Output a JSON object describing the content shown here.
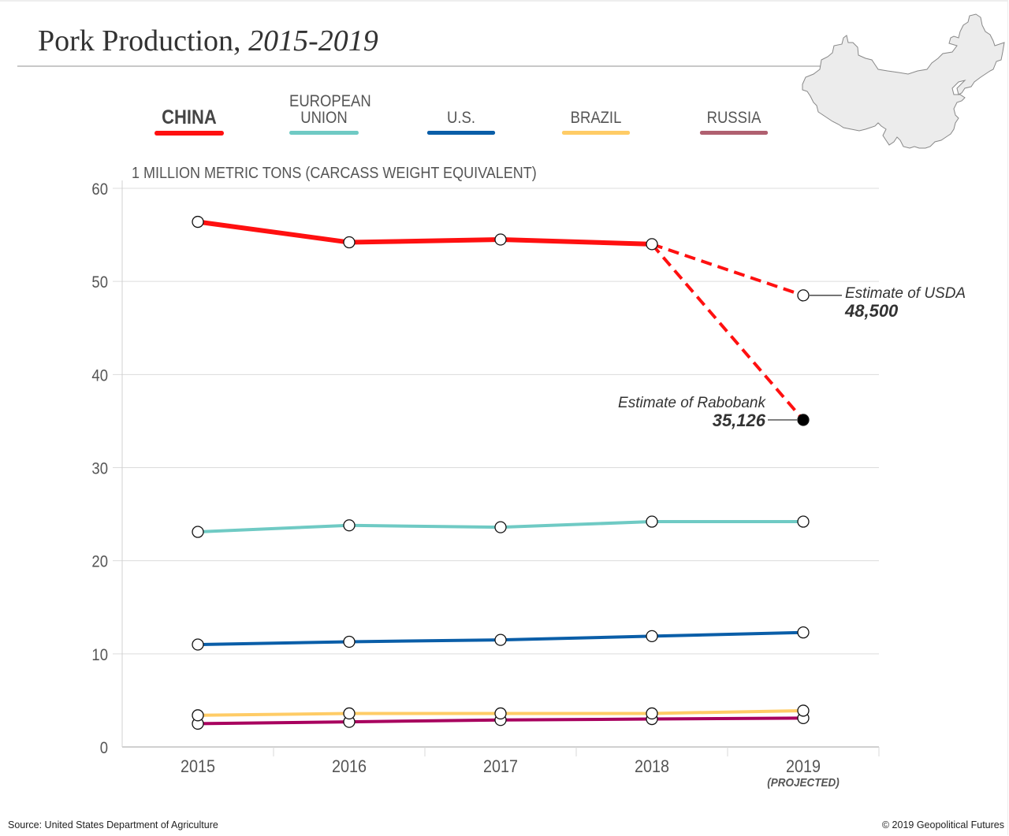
{
  "header": {
    "title_main": "Pork Production,",
    "title_years": "2015-2019"
  },
  "legend": [
    {
      "label": "CHINA",
      "color": "#ff1010",
      "bold": true
    },
    {
      "label": "EUROPEAN UNION",
      "line1": "EUROPEAN",
      "line2": "UNION",
      "color": "#6fcac4",
      "bold": false
    },
    {
      "label": "U.S.",
      "color": "#0a5ea8",
      "bold": false
    },
    {
      "label": "BRAZIL",
      "color": "#ffcc66",
      "bold": false
    },
    {
      "label": "RUSSIA",
      "color": "#b06070",
      "bold": false
    }
  ],
  "map": {
    "name": "China",
    "fill": "#ececec",
    "stroke": "#888888"
  },
  "chart_data": {
    "type": "line",
    "title": "Pork Production, 2015-2019",
    "ylabel": "1 MILLION METRIC TONS (CARCASS WEIGHT EQUIVALENT)",
    "xlabel": "",
    "x": [
      "2015",
      "2016",
      "2017",
      "2018",
      "2019"
    ],
    "x_sublabels": [
      "",
      "",
      "",
      "",
      "(PROJECTED)"
    ],
    "ylim": [
      0,
      60
    ],
    "yticks": [
      0,
      10,
      20,
      30,
      40,
      50,
      60
    ],
    "grid": true,
    "series": [
      {
        "name": "China",
        "color": "#ff1010",
        "values": [
          56.4,
          54.2,
          54.5,
          54.0,
          null
        ]
      },
      {
        "name": "European Union",
        "color": "#6fcac4",
        "values": [
          23.1,
          23.8,
          23.6,
          24.2,
          24.2
        ]
      },
      {
        "name": "U.S.",
        "color": "#0a5ea8",
        "values": [
          11.0,
          11.3,
          11.5,
          11.9,
          12.3
        ]
      },
      {
        "name": "Brazil",
        "color": "#ffcc66",
        "values": [
          3.4,
          3.6,
          3.6,
          3.6,
          3.9
        ]
      },
      {
        "name": "Russia",
        "color": "#a8005e",
        "values": [
          2.5,
          2.7,
          2.9,
          3.0,
          3.1
        ]
      }
    ],
    "projections": [
      {
        "name": "Estimate of USDA",
        "series": "China",
        "from": "2018",
        "to": "2019",
        "value": 48.5,
        "label_value": "48,500",
        "color": "#ff1010",
        "style": "dashed",
        "marker": "open"
      },
      {
        "name": "Estimate of Rabobank",
        "series": "China",
        "from": "2018",
        "to": "2019",
        "value": 35.126,
        "label_value": "35,126",
        "color": "#ff1010",
        "style": "dashed",
        "marker": "filled"
      }
    ],
    "legend_position": "top"
  },
  "footer": {
    "source": "Source: United States Department of Agriculture",
    "copyright": "© 2019 Geopolitical Futures"
  }
}
